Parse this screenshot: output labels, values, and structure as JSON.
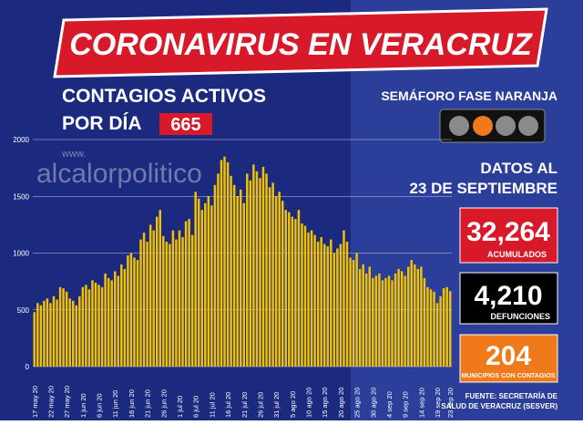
{
  "chart_data": {
    "type": "bar",
    "categories": [
      "17 may 20",
      null,
      null,
      null,
      null,
      "22 may 20",
      null,
      null,
      null,
      null,
      "27 may 20",
      null,
      null,
      null,
      null,
      "1 jun 20",
      null,
      null,
      null,
      null,
      "6 jun 20",
      null,
      null,
      null,
      null,
      "11 jun 20",
      null,
      null,
      null,
      null,
      "16 jun 20",
      null,
      null,
      null,
      null,
      "21 jun 20",
      null,
      null,
      null,
      null,
      "26 jun 20",
      null,
      null,
      null,
      null,
      "1 jul 20",
      null,
      null,
      null,
      null,
      "6 jul 20",
      null,
      null,
      null,
      null,
      "11 jul 20",
      null,
      null,
      null,
      null,
      "16 jul 20",
      null,
      null,
      null,
      null,
      "21 jul 20",
      null,
      null,
      null,
      null,
      "26 jul 20",
      null,
      null,
      null,
      null,
      "31 jul 20",
      null,
      null,
      null,
      null,
      "5 ago 20",
      null,
      null,
      null,
      null,
      "10 ago 20",
      null,
      null,
      null,
      null,
      "15 ago 20",
      null,
      null,
      null,
      null,
      "20 ago 20",
      null,
      null,
      null,
      null,
      "25 ago 20",
      null,
      null,
      null,
      null,
      "30 ago 20",
      null,
      null,
      null,
      null,
      "4 sep 20",
      null,
      null,
      null,
      null,
      "9 sep 20",
      null,
      null,
      null,
      null,
      "14 sep 20",
      null,
      null,
      null,
      null,
      "19 sep 20",
      null,
      null,
      null,
      "23 sep 20"
    ],
    "values": [
      480,
      560,
      540,
      580,
      600,
      560,
      620,
      590,
      700,
      690,
      660,
      600,
      580,
      540,
      620,
      700,
      720,
      680,
      760,
      740,
      720,
      700,
      820,
      780,
      760,
      840,
      800,
      900,
      860,
      980,
      1000,
      960,
      940,
      1120,
      1180,
      1100,
      1250,
      1200,
      1320,
      1380,
      1150,
      1100,
      1080,
      1200,
      1120,
      1200,
      1140,
      1280,
      1300,
      1160,
      1540,
      1480,
      1380,
      1440,
      1500,
      1420,
      1600,
      1700,
      1820,
      1850,
      1800,
      1680,
      1600,
      1500,
      1560,
      1440,
      1700,
      1640,
      1780,
      1720,
      1660,
      1760,
      1700,
      1580,
      1620,
      1500,
      1540,
      1460,
      1380,
      1360,
      1320,
      1300,
      1380,
      1260,
      1240,
      1180,
      1200,
      1160,
      1100,
      1140,
      1080,
      1060,
      1120,
      1000,
      1040,
      1080,
      1200,
      1100,
      960,
      940,
      1000,
      860,
      900,
      820,
      880,
      780,
      800,
      820,
      760,
      780,
      800,
      760,
      820,
      860,
      840,
      800,
      880,
      940,
      900,
      860,
      880,
      780,
      700,
      680,
      660,
      560,
      620,
      690,
      700,
      665
    ],
    "color": "#f2c200",
    "ylim": [
      0,
      2000
    ],
    "yticks": [
      0,
      500,
      1000,
      1500,
      2000
    ],
    "grid": true
  },
  "panel": {
    "title": "CORONAVIRUS EN VERACRUZ",
    "subtitle_1": "CONTAGIOS ACTIVOS",
    "subtitle_2": "POR DÍA",
    "active": "665",
    "watermark_1": "www.",
    "watermark_2": "alcalorpolitico",
    "semaforo": "SEMÁFORO FASE NARANJA",
    "date_1": "DATOS AL",
    "date_2": "23 DE SEPTIEMBRE",
    "stats": [
      {
        "value": "32,264",
        "label": "ACUMULADOS"
      },
      {
        "value": "4,210",
        "label": "DEFUNCIONES"
      },
      {
        "value": "204",
        "label": "MUNICIPIOS CON CONTAGIOS"
      }
    ],
    "source_1": "FUENTE: SECRETARÍA DE",
    "source_2": "SALUD DE VERACRUZ (SESVER)"
  }
}
